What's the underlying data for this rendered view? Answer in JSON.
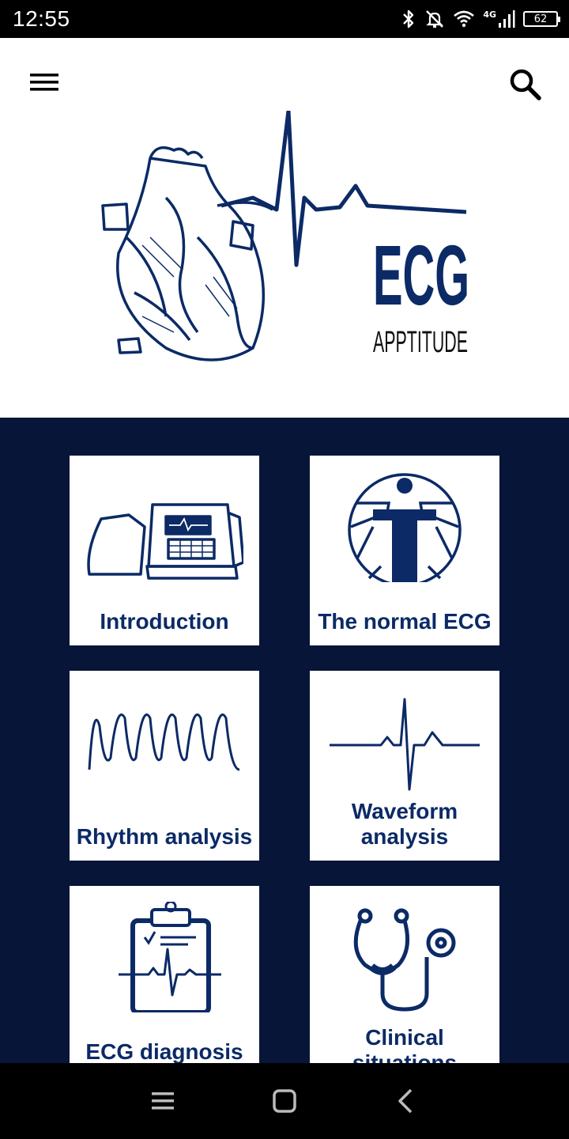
{
  "status": {
    "time": "12:55",
    "network": "4G",
    "battery": "62"
  },
  "header": {
    "menu_icon": "hamburger-menu-icon",
    "search_icon": "search-icon"
  },
  "logo": {
    "line1": "ECG",
    "line2": "APPTITUDE"
  },
  "cards": [
    {
      "label": "Introduction",
      "icon": "ecg-machine-icon"
    },
    {
      "label": "The normal ECG",
      "icon": "vitruvian-man-icon"
    },
    {
      "label": "Rhythm analysis",
      "icon": "rhythm-wave-icon"
    },
    {
      "label": "Waveform analysis",
      "icon": "waveform-icon"
    },
    {
      "label": "ECG diagnosis",
      "icon": "clipboard-icon"
    },
    {
      "label": "Clinical situations",
      "icon": "stethoscope-icon"
    }
  ],
  "colors": {
    "navy": "#0b2a66",
    "background": "#061538"
  },
  "navbar": {
    "recents_icon": "recents-icon",
    "home_icon": "home-icon",
    "back_icon": "back-icon"
  }
}
